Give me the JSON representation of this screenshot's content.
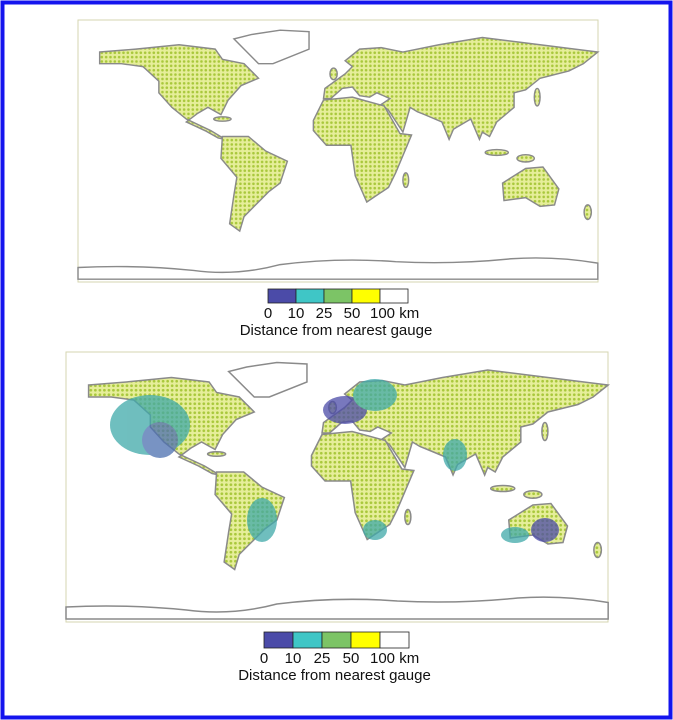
{
  "panels": [
    {
      "colorbar": {
        "colors": [
          "#4b4ba8",
          "#3fc6c6",
          "#7cc466",
          "#ffff00",
          "#ffffff"
        ],
        "ticks": [
          0,
          10,
          25,
          50,
          {
            "value": 100,
            "label": "100 km"
          }
        ],
        "label": "Distance from nearest gauge"
      }
    },
    {
      "colorbar": {
        "colors": [
          "#4b4ba8",
          "#3fc6c6",
          "#7cc466",
          "#ffff00",
          "#ffffff"
        ],
        "ticks": [
          0,
          10,
          25,
          50,
          {
            "value": 100,
            "label": "100 km"
          }
        ],
        "label": "Distance from nearest gauge"
      }
    }
  ]
}
